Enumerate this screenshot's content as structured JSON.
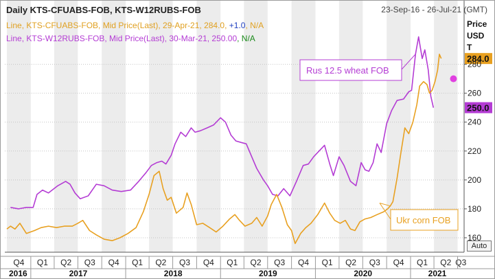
{
  "header": {
    "title": "Daily KTS-CFUABS-FOB, KTS-W12RUBS-FOB",
    "date_range": "23-Sep-16 - 26-Jul-21 (GMT)"
  },
  "legend": {
    "line1": {
      "prefix": "Line, KTS-CFUABS-FOB, Mid Price(Last), 29-Apr-21, 284.0, ",
      "change": "+1.0",
      "tail": ", N/A"
    },
    "line2": {
      "prefix": "Line, KTS-W12RUBS-FOB, Mid Price(Last), 30-Mar-21, 250.0",
      "change": "0",
      "tail": ", N/A"
    }
  },
  "axis_title": [
    "Price",
    "USD",
    "T"
  ],
  "auto_label": "Auto",
  "colors": {
    "corn": "#e8a020",
    "wheat": "#b43cd4",
    "marker": "#e040e0",
    "band": "#ececec"
  },
  "chart_data": {
    "type": "line",
    "ylim": [
      150,
      305
    ],
    "yticks": [
      160,
      180,
      200,
      220,
      240,
      260,
      280
    ],
    "xlim": [
      "2016-09-23",
      "2021-07-26"
    ],
    "quarters": [
      {
        "label": "Q4",
        "start": "2016-10-01"
      },
      {
        "label": "Q1",
        "start": "2017-01-01"
      },
      {
        "label": "Q2",
        "start": "2017-04-01"
      },
      {
        "label": "Q3",
        "start": "2017-07-01"
      },
      {
        "label": "Q4",
        "start": "2017-10-01"
      },
      {
        "label": "Q1",
        "start": "2018-01-01"
      },
      {
        "label": "Q2",
        "start": "2018-04-01"
      },
      {
        "label": "Q3",
        "start": "2018-07-01"
      },
      {
        "label": "Q4",
        "start": "2018-10-01"
      },
      {
        "label": "Q1",
        "start": "2019-01-01"
      },
      {
        "label": "Q2",
        "start": "2019-04-01"
      },
      {
        "label": "Q3",
        "start": "2019-07-01"
      },
      {
        "label": "Q4",
        "start": "2019-10-01"
      },
      {
        "label": "Q1",
        "start": "2020-01-01"
      },
      {
        "label": "Q2",
        "start": "2020-04-01"
      },
      {
        "label": "Q3",
        "start": "2020-07-01"
      },
      {
        "label": "Q4",
        "start": "2020-10-01"
      },
      {
        "label": "Q1",
        "start": "2021-01-01"
      },
      {
        "label": "Q2",
        "start": "2021-04-01"
      },
      {
        "label": "Q3",
        "start": "2021-07-01"
      }
    ],
    "years": [
      {
        "label": "2016",
        "start": "2016-09-23",
        "end": "2017-01-01"
      },
      {
        "label": "2017",
        "start": "2017-01-01",
        "end": "2018-01-01"
      },
      {
        "label": "2018",
        "start": "2018-01-01",
        "end": "2019-01-01"
      },
      {
        "label": "2019",
        "start": "2019-01-01",
        "end": "2020-01-01"
      },
      {
        "label": "2020",
        "start": "2020-01-01",
        "end": "2021-01-01"
      },
      {
        "label": "2021",
        "start": "2021-01-01",
        "end": "2021-07-26"
      }
    ],
    "series": [
      {
        "key": "wheat",
        "last_value": "250.0",
        "annotation": "Rus 12.5 wheat FOB",
        "points": [
          [
            "2016-10-15",
            181
          ],
          [
            "2016-11-15",
            180
          ],
          [
            "2016-12-15",
            181
          ],
          [
            "2017-01-10",
            181
          ],
          [
            "2017-01-25",
            190
          ],
          [
            "2017-02-15",
            193
          ],
          [
            "2017-03-10",
            191
          ],
          [
            "2017-04-15",
            196
          ],
          [
            "2017-05-15",
            199
          ],
          [
            "2017-06-01",
            197
          ],
          [
            "2017-06-20",
            191
          ],
          [
            "2017-07-10",
            187
          ],
          [
            "2017-08-10",
            189
          ],
          [
            "2017-09-10",
            197
          ],
          [
            "2017-10-10",
            196
          ],
          [
            "2017-11-10",
            193
          ],
          [
            "2017-12-15",
            192
          ],
          [
            "2018-01-20",
            193
          ],
          [
            "2018-02-20",
            199
          ],
          [
            "2018-03-20",
            205
          ],
          [
            "2018-04-10",
            210
          ],
          [
            "2018-05-01",
            212
          ],
          [
            "2018-05-20",
            213
          ],
          [
            "2018-06-05",
            211
          ],
          [
            "2018-06-25",
            217
          ],
          [
            "2018-07-10",
            225
          ],
          [
            "2018-08-01",
            233
          ],
          [
            "2018-08-20",
            230
          ],
          [
            "2018-09-10",
            236
          ],
          [
            "2018-09-25",
            233
          ],
          [
            "2018-10-15",
            234
          ],
          [
            "2018-11-10",
            236
          ],
          [
            "2018-12-05",
            238
          ],
          [
            "2019-01-01",
            243
          ],
          [
            "2019-01-20",
            240
          ],
          [
            "2019-02-10",
            231
          ],
          [
            "2019-03-01",
            227
          ],
          [
            "2019-03-20",
            226
          ],
          [
            "2019-04-10",
            225
          ],
          [
            "2019-05-01",
            216
          ],
          [
            "2019-05-20",
            208
          ],
          [
            "2019-06-15",
            200
          ],
          [
            "2019-07-01",
            196
          ],
          [
            "2019-07-20",
            190
          ],
          [
            "2019-08-10",
            189
          ],
          [
            "2019-09-01",
            194
          ],
          [
            "2019-09-25",
            189
          ],
          [
            "2019-10-20",
            199
          ],
          [
            "2019-11-15",
            210
          ],
          [
            "2019-12-05",
            211
          ],
          [
            "2019-12-25",
            216
          ],
          [
            "2020-01-15",
            220
          ],
          [
            "2020-02-05",
            224
          ],
          [
            "2020-02-25",
            211
          ],
          [
            "2020-03-10",
            203
          ],
          [
            "2020-04-01",
            216
          ],
          [
            "2020-04-20",
            210
          ],
          [
            "2020-05-15",
            199
          ],
          [
            "2020-06-05",
            196
          ],
          [
            "2020-06-25",
            212
          ],
          [
            "2020-07-10",
            207
          ],
          [
            "2020-07-25",
            206
          ],
          [
            "2020-08-10",
            212
          ],
          [
            "2020-08-25",
            225
          ],
          [
            "2020-09-10",
            219
          ],
          [
            "2020-10-01",
            239
          ],
          [
            "2020-10-20",
            248
          ],
          [
            "2020-11-10",
            255
          ],
          [
            "2020-12-05",
            256
          ],
          [
            "2020-12-25",
            261
          ],
          [
            "2021-01-05",
            262
          ],
          [
            "2021-01-20",
            287
          ],
          [
            "2021-02-01",
            299
          ],
          [
            "2021-02-15",
            284
          ],
          [
            "2021-02-25",
            290
          ],
          [
            "2021-03-10",
            276
          ],
          [
            "2021-03-20",
            258
          ],
          [
            "2021-03-30",
            250
          ]
        ]
      },
      {
        "key": "corn",
        "last_value": "284.0",
        "annotation": "Ukr corn FOB",
        "points": [
          [
            "2016-10-01",
            166
          ],
          [
            "2016-10-15",
            168
          ],
          [
            "2016-11-01",
            166
          ],
          [
            "2016-11-20",
            170
          ],
          [
            "2016-12-15",
            163
          ],
          [
            "2017-01-15",
            165
          ],
          [
            "2017-02-10",
            167
          ],
          [
            "2017-03-10",
            168
          ],
          [
            "2017-04-10",
            167
          ],
          [
            "2017-05-10",
            168
          ],
          [
            "2017-06-10",
            168
          ],
          [
            "2017-07-01",
            170
          ],
          [
            "2017-07-20",
            172
          ],
          [
            "2017-08-15",
            165
          ],
          [
            "2017-09-10",
            162
          ],
          [
            "2017-10-10",
            159
          ],
          [
            "2017-11-10",
            158
          ],
          [
            "2017-12-10",
            160
          ],
          [
            "2018-01-10",
            163
          ],
          [
            "2018-02-10",
            167
          ],
          [
            "2018-03-10",
            178
          ],
          [
            "2018-04-01",
            190
          ],
          [
            "2018-04-20",
            203
          ],
          [
            "2018-05-10",
            206
          ],
          [
            "2018-05-25",
            194
          ],
          [
            "2018-06-10",
            186
          ],
          [
            "2018-06-25",
            188
          ],
          [
            "2018-07-15",
            177
          ],
          [
            "2018-08-10",
            181
          ],
          [
            "2018-08-25",
            191
          ],
          [
            "2018-09-10",
            183
          ],
          [
            "2018-10-01",
            169
          ],
          [
            "2018-10-25",
            170
          ],
          [
            "2018-11-20",
            167
          ],
          [
            "2018-12-15",
            164
          ],
          [
            "2019-01-10",
            168
          ],
          [
            "2019-02-05",
            173
          ],
          [
            "2019-02-25",
            176
          ],
          [
            "2019-03-15",
            172
          ],
          [
            "2019-04-05",
            168
          ],
          [
            "2019-05-01",
            170
          ],
          [
            "2019-05-20",
            174
          ],
          [
            "2019-06-10",
            168
          ],
          [
            "2019-07-01",
            175
          ],
          [
            "2019-07-15",
            183
          ],
          [
            "2019-08-05",
            190
          ],
          [
            "2019-08-25",
            181
          ],
          [
            "2019-09-15",
            169
          ],
          [
            "2019-10-01",
            165
          ],
          [
            "2019-10-15",
            156
          ],
          [
            "2019-11-05",
            163
          ],
          [
            "2019-11-25",
            167
          ],
          [
            "2019-12-15",
            170
          ],
          [
            "2020-01-10",
            176
          ],
          [
            "2020-02-05",
            184
          ],
          [
            "2020-02-25",
            177
          ],
          [
            "2020-03-15",
            172
          ],
          [
            "2020-04-05",
            170
          ],
          [
            "2020-04-25",
            172
          ],
          [
            "2020-05-15",
            166
          ],
          [
            "2020-06-01",
            165
          ],
          [
            "2020-06-20",
            171
          ],
          [
            "2020-07-10",
            173
          ],
          [
            "2020-08-01",
            174
          ],
          [
            "2020-08-25",
            176
          ],
          [
            "2020-09-20",
            178
          ],
          [
            "2020-10-05",
            180
          ],
          [
            "2020-10-15",
            182
          ],
          [
            "2020-10-25",
            185
          ],
          [
            "2020-11-10",
            201
          ],
          [
            "2020-11-25",
            219
          ],
          [
            "2020-12-10",
            236
          ],
          [
            "2020-12-25",
            232
          ],
          [
            "2021-01-10",
            240
          ],
          [
            "2021-01-25",
            252
          ],
          [
            "2021-02-05",
            265
          ],
          [
            "2021-02-20",
            268
          ],
          [
            "2021-03-05",
            266
          ],
          [
            "2021-03-15",
            260
          ],
          [
            "2021-03-25",
            262
          ],
          [
            "2021-04-05",
            268
          ],
          [
            "2021-04-15",
            276
          ],
          [
            "2021-04-22",
            287
          ],
          [
            "2021-04-29",
            284
          ]
        ]
      }
    ],
    "marker": {
      "date": "2021-06-15",
      "value": 270
    }
  }
}
